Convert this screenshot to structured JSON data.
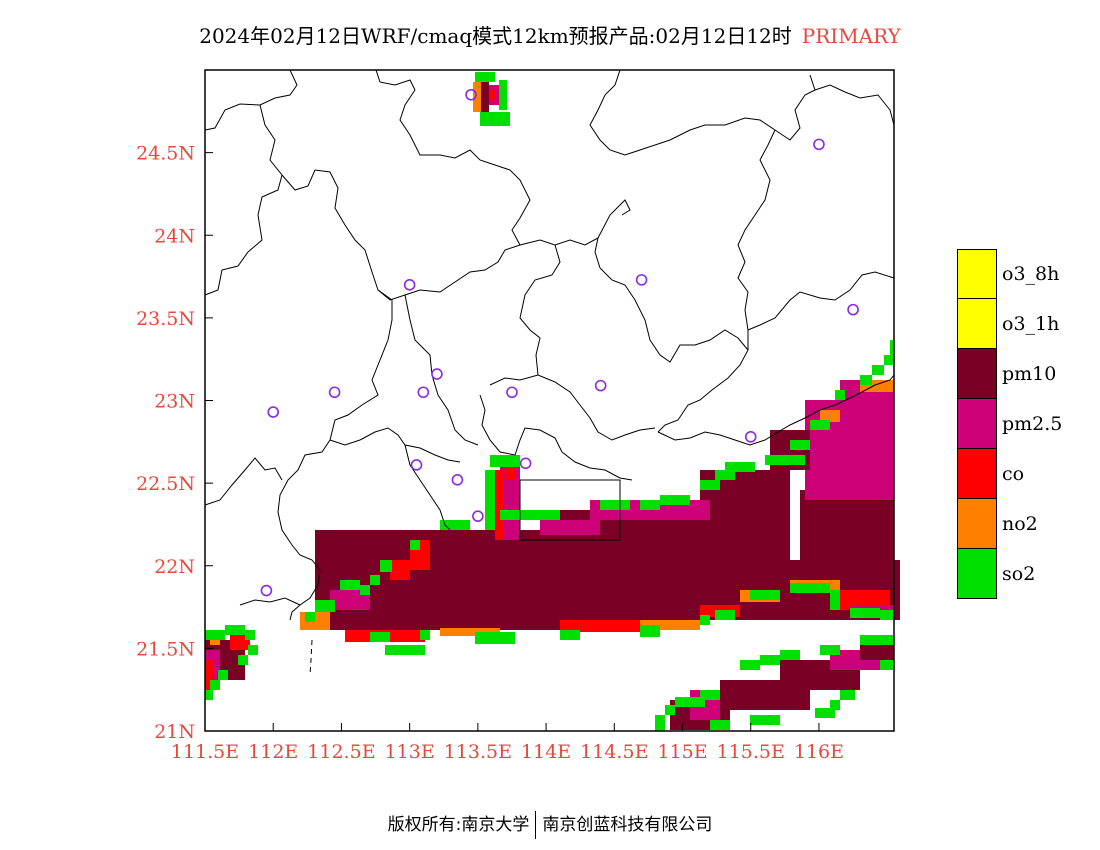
{
  "title": {
    "main": "2024年02月12日WRF/cmaq模式12km预报产品:02月12日12时",
    "tag": "PRIMARY"
  },
  "colors": {
    "label_red": "#e8473c",
    "station_marker": "#8a2be2",
    "coastline": "#000000"
  },
  "axes": {
    "x_ticks": [
      "111.5E",
      "112E",
      "112.5E",
      "113E",
      "113.5E",
      "114E",
      "114.5E",
      "115E",
      "115.5E",
      "116E"
    ],
    "y_ticks": [
      "24.5N",
      "24N",
      "23.5N",
      "23N",
      "22.5N",
      "22N",
      "21.5N",
      "21N"
    ],
    "x_values": [
      111.5,
      112,
      112.5,
      113,
      113.5,
      114,
      114.5,
      115,
      115.5,
      116
    ],
    "y_values": [
      24.5,
      24,
      23.5,
      23,
      22.5,
      22,
      21.5,
      21
    ],
    "xlim": [
      111.5,
      116.55
    ],
    "ylim": [
      21,
      25.0
    ]
  },
  "legend": [
    {
      "label": "o3_8h",
      "color": "#ffff00"
    },
    {
      "label": "o3_1h",
      "color": "#ffff00"
    },
    {
      "label": "pm10",
      "color": "#7a0025"
    },
    {
      "label": "pm2.5",
      "color": "#cc0077"
    },
    {
      "label": "co",
      "color": "#ff0000"
    },
    {
      "label": "no2",
      "color": "#ff7f00"
    },
    {
      "label": "so2",
      "color": "#00e000"
    }
  ],
  "stations": [
    [
      113.45,
      24.85
    ],
    [
      116.0,
      24.55
    ],
    [
      113.0,
      23.7
    ],
    [
      114.7,
      23.73
    ],
    [
      116.25,
      23.55
    ],
    [
      112.45,
      23.05
    ],
    [
      113.1,
      23.05
    ],
    [
      113.2,
      23.16
    ],
    [
      113.75,
      23.05
    ],
    [
      114.4,
      23.09
    ],
    [
      112.0,
      22.93
    ],
    [
      115.5,
      22.78
    ],
    [
      113.05,
      22.61
    ],
    [
      113.85,
      22.62
    ],
    [
      113.35,
      22.52
    ],
    [
      113.5,
      22.3
    ],
    [
      111.95,
      21.85
    ]
  ],
  "footer": {
    "copyright": "版权所有:南京大学",
    "company": "南京创蓝科技有限公司"
  }
}
